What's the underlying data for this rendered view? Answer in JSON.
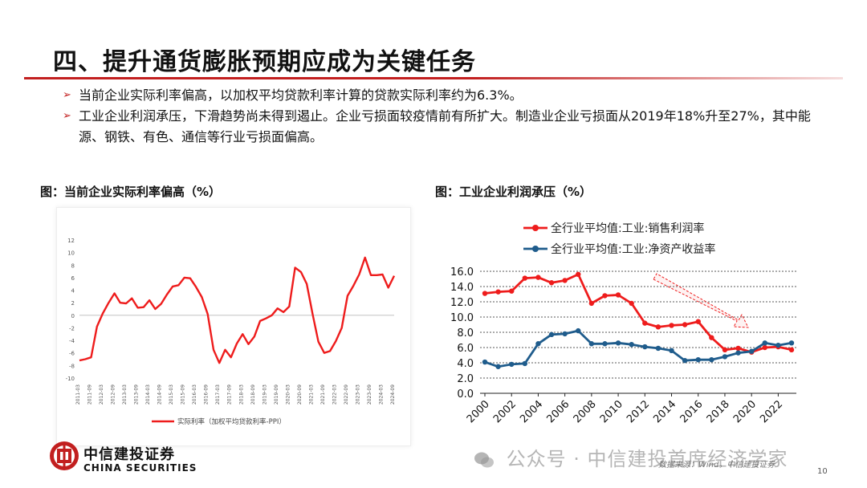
{
  "title": "四、提升通货膨胀预期应成为关键任务",
  "bullets": [
    "当前企业实际利率偏高，以加权平均贷款利率计算的贷款实际利率约为6.3%。",
    "工业企业利润承压，下滑趋势尚未得到遏止。企业亏损面较疫情前有所扩大。制造业企业亏损面从2019年18%升至27%，其中能源、钢铁、有色、通信等行业亏损面偏高。"
  ],
  "left_label": "图：当前企业实际利率偏高（%）",
  "right_label": "图：工业企业利润承压（%）",
  "colors": {
    "red": "#ee1c1c",
    "blue": "#1f5c8c",
    "accent": "#c21f1f"
  },
  "chart_data": [
    {
      "type": "line",
      "ylim": [
        -10,
        12
      ],
      "yticks": [
        "12",
        "10",
        "8",
        "6",
        "4",
        "2",
        "0",
        "-2",
        "-4",
        "-6",
        "-8",
        "-10"
      ],
      "x_tick_labels": [
        "2011-03",
        "2011-09",
        "2012-03",
        "2012-09",
        "2013-03",
        "2013-09",
        "2014-03",
        "2014-09",
        "2015-03",
        "2015-09",
        "2016-03",
        "2016-09",
        "2017-03",
        "2017-09",
        "2018-03",
        "2018-09",
        "2019-03",
        "2019-09",
        "2020-03",
        "2020-09",
        "2021-03",
        "2021-09",
        "2022-03",
        "2022-09",
        "2023-03",
        "2023-09",
        "2024-03",
        "2024-09"
      ],
      "series": [
        {
          "name": "实际利率（加权平均贷款利率-PPI）",
          "values": [
            -7.2,
            -7.0,
            -6.7,
            -1.8,
            0.3,
            2.0,
            3.5,
            2.0,
            1.9,
            2.7,
            1.2,
            1.3,
            2.4,
            1.0,
            1.8,
            3.3,
            4.6,
            4.8,
            6.0,
            5.9,
            4.5,
            2.9,
            0.2,
            -5.5,
            -7.6,
            -5.5,
            -6.7,
            -4.5,
            -3.0,
            -4.6,
            -3.4,
            -0.9,
            -0.5,
            0.0,
            1.1,
            0.5,
            1.4,
            7.6,
            6.9,
            5.0,
            0.2,
            -4.2,
            -6.0,
            -5.7,
            -4.1,
            -2.0,
            3.1,
            4.7,
            6.5,
            9.2,
            6.4,
            6.4,
            6.5,
            4.4,
            6.3
          ]
        }
      ]
    },
    {
      "type": "line",
      "ylim": [
        0,
        16
      ],
      "yticks": [
        "16.0",
        "14.0",
        "12.0",
        "10.0",
        "8.0",
        "6.0",
        "4.0",
        "2.0",
        "0.0"
      ],
      "x_tick_labels": [
        "2000",
        "2002",
        "2004",
        "2006",
        "2008",
        "2010",
        "2012",
        "2014",
        "2016",
        "2018",
        "2020",
        "2022"
      ],
      "x": [
        2000,
        2001,
        2002,
        2003,
        2004,
        2005,
        2006,
        2007,
        2008,
        2009,
        2010,
        2011,
        2012,
        2013,
        2014,
        2015,
        2016,
        2017,
        2018,
        2019,
        2020,
        2021,
        2022,
        2023
      ],
      "series": [
        {
          "name": "全行业平均值:工业:销售利润率",
          "values": [
            13.1,
            13.3,
            13.4,
            15.1,
            15.2,
            14.5,
            14.8,
            15.6,
            11.8,
            12.8,
            12.9,
            11.8,
            9.2,
            8.7,
            8.9,
            9.0,
            9.4,
            7.3,
            5.7,
            5.9,
            5.4,
            6.0,
            6.1,
            5.7
          ]
        },
        {
          "name": "全行业平均值:工业:净资产收益率",
          "values": [
            4.1,
            3.5,
            3.8,
            3.9,
            6.5,
            7.7,
            7.8,
            8.2,
            6.5,
            6.5,
            6.6,
            6.4,
            6.1,
            5.9,
            5.6,
            4.3,
            4.4,
            4.4,
            4.8,
            5.3,
            5.5,
            6.6,
            6.3,
            6.6
          ]
        }
      ]
    }
  ],
  "logo": {
    "cn": "中信建投证券",
    "en": "CHINA SECURITIES"
  },
  "watermark": "公众号 · 中信建投首席经济学家",
  "source": "数据来源：Wind，中信建投证券",
  "page_number": "10"
}
